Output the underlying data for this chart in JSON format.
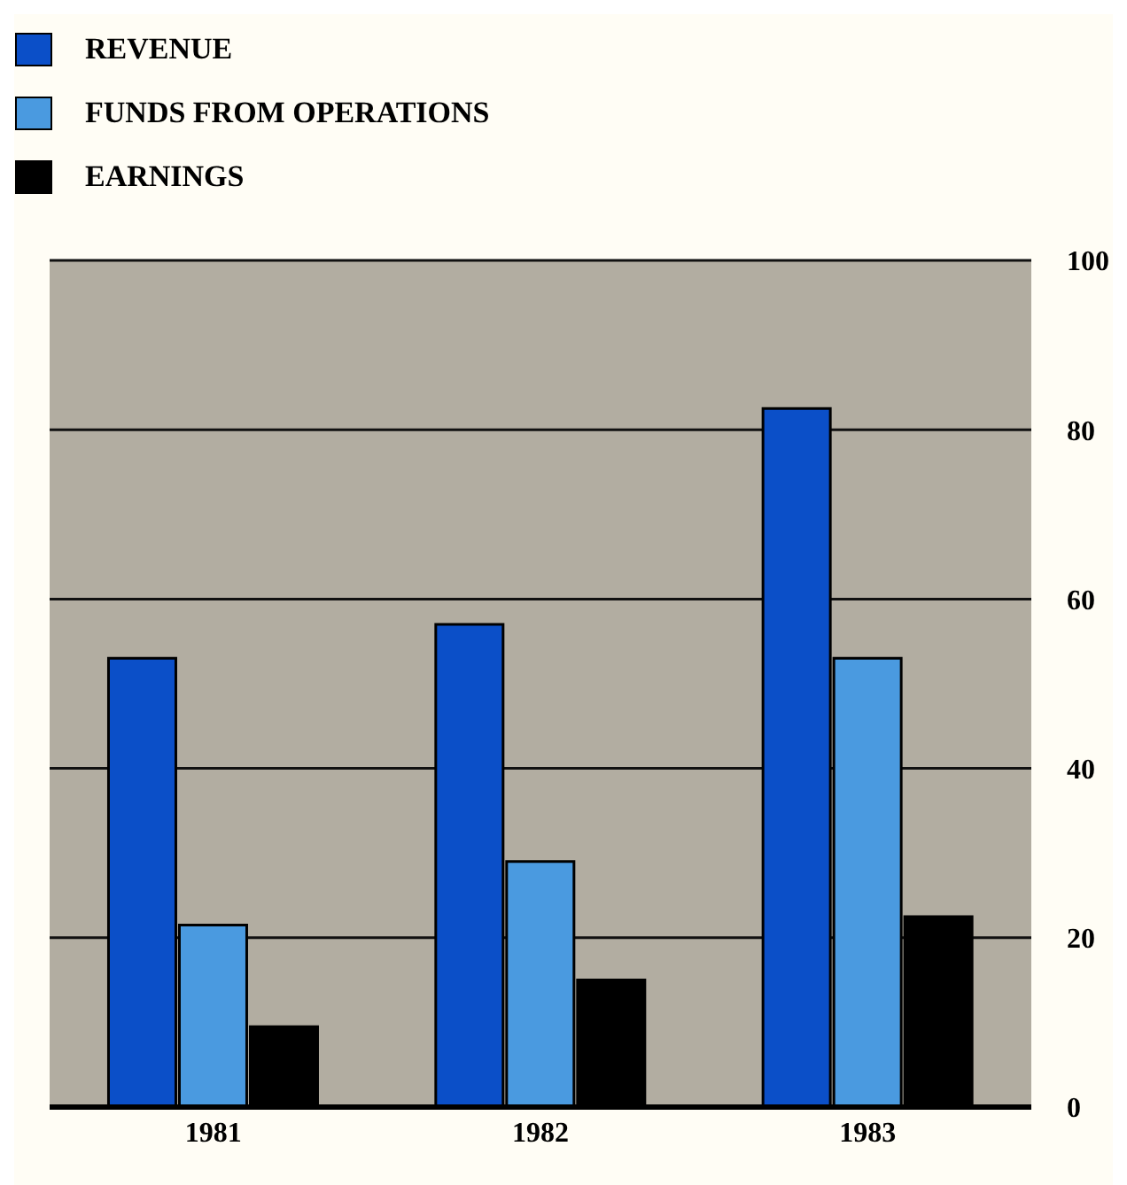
{
  "chart_data": {
    "type": "bar",
    "categories": [
      "1981",
      "1982",
      "1983"
    ],
    "series": [
      {
        "name": "REVENUE",
        "color": "#0b4fc8",
        "values": [
          53,
          57,
          82.5
        ]
      },
      {
        "name": "FUNDS FROM OPERATIONS",
        "color": "#4a9ae0",
        "values": [
          21.5,
          29,
          53
        ]
      },
      {
        "name": "EARNINGS",
        "color": "#000000",
        "values": [
          9.5,
          15,
          22.5
        ]
      }
    ],
    "ylim": [
      0,
      100
    ],
    "yticks": [
      0,
      20,
      40,
      60,
      80,
      100
    ],
    "grid": "y",
    "legend": "top left"
  }
}
